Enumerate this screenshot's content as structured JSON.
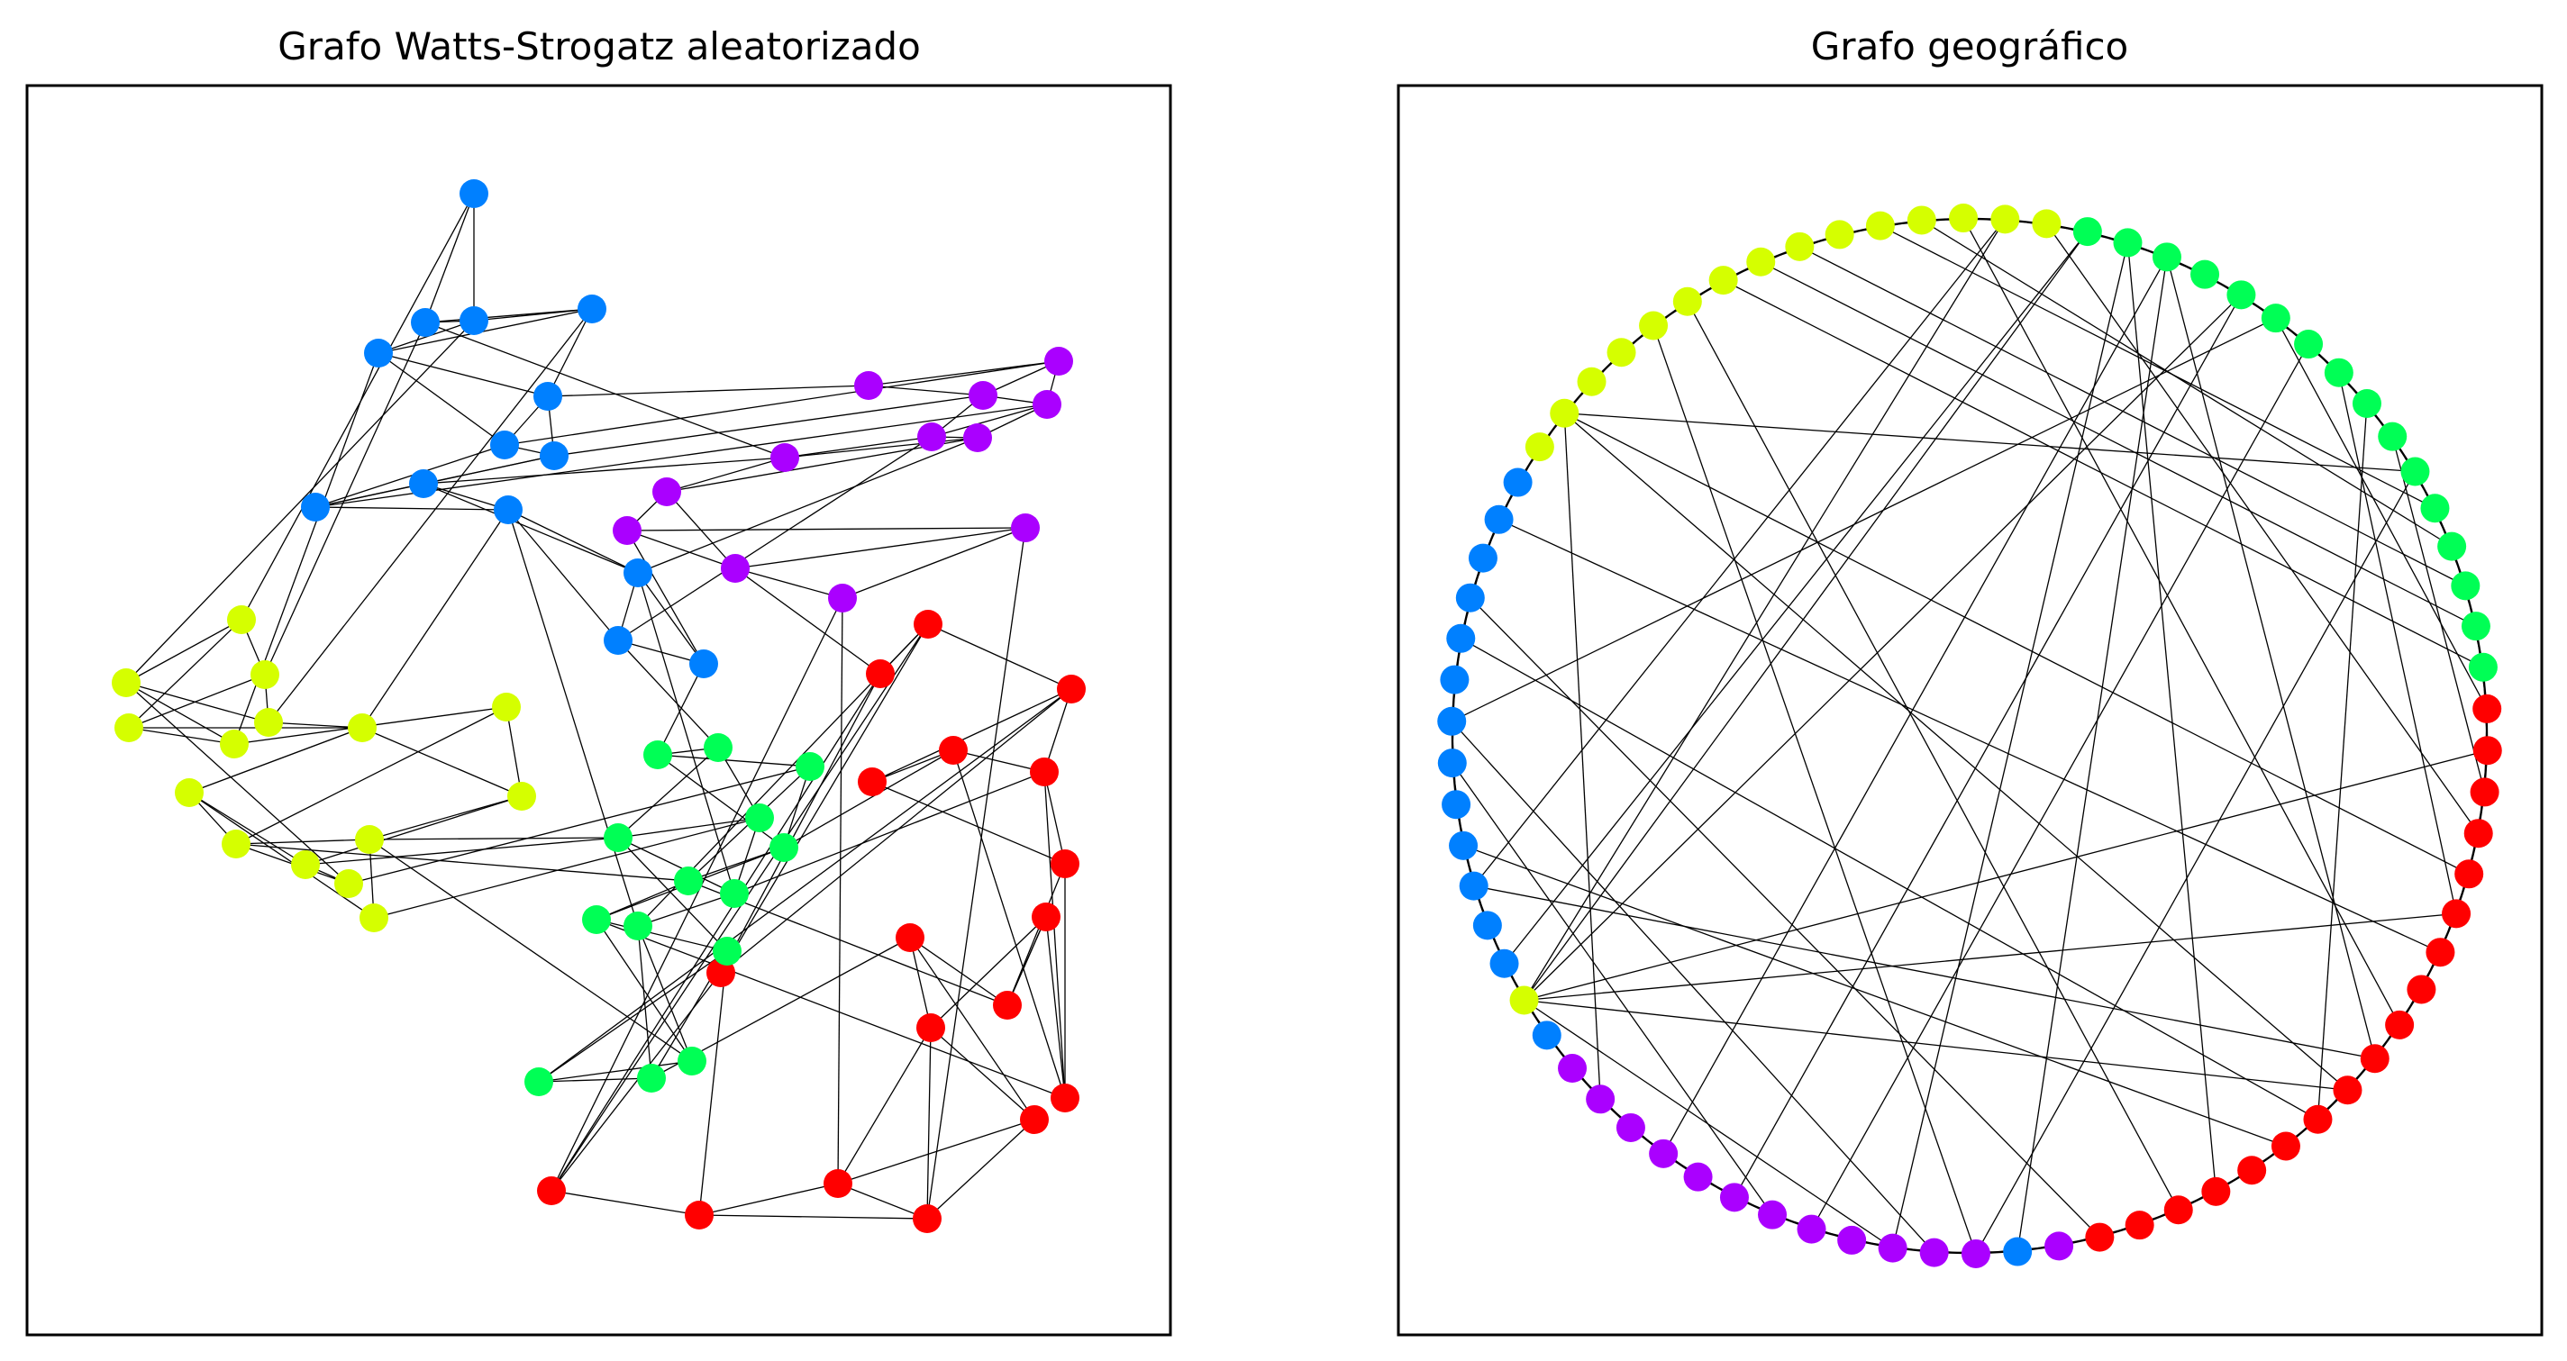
{
  "figure": {
    "panels": [
      {
        "id": "ws",
        "title": "Grafo Watts-Strogatz aleatorizado",
        "layout": "spring",
        "nodes": [
          {
            "id": "r0",
            "g": "red"
          },
          {
            "id": "r1",
            "g": "red"
          },
          {
            "id": "r2",
            "g": "red"
          },
          {
            "id": "r3",
            "g": "red"
          },
          {
            "id": "r4",
            "g": "red"
          },
          {
            "id": "r5",
            "g": "red"
          },
          {
            "id": "r6",
            "g": "red"
          },
          {
            "id": "r7",
            "g": "red"
          },
          {
            "id": "r8",
            "g": "red"
          },
          {
            "id": "r9",
            "g": "red"
          },
          {
            "id": "r10",
            "g": "red"
          },
          {
            "id": "r11",
            "g": "red"
          },
          {
            "id": "r12",
            "g": "red"
          },
          {
            "id": "r13",
            "g": "red"
          },
          {
            "id": "r14",
            "g": "red"
          },
          {
            "id": "r15",
            "g": "red"
          },
          {
            "id": "r16",
            "g": "red"
          },
          {
            "id": "r17",
            "g": "red"
          },
          {
            "id": "g0",
            "g": "green"
          },
          {
            "id": "g1",
            "g": "green"
          },
          {
            "id": "g2",
            "g": "green"
          },
          {
            "id": "g3",
            "g": "green"
          },
          {
            "id": "g4",
            "g": "green"
          },
          {
            "id": "g5",
            "g": "green"
          },
          {
            "id": "g6",
            "g": "green"
          },
          {
            "id": "g7",
            "g": "green"
          },
          {
            "id": "g8",
            "g": "green"
          },
          {
            "id": "g9",
            "g": "green"
          },
          {
            "id": "g10",
            "g": "green"
          },
          {
            "id": "g11",
            "g": "green"
          },
          {
            "id": "g12",
            "g": "green"
          },
          {
            "id": "g13",
            "g": "green"
          },
          {
            "id": "y0",
            "g": "yellow"
          },
          {
            "id": "y1",
            "g": "yellow"
          },
          {
            "id": "y2",
            "g": "yellow"
          },
          {
            "id": "y3",
            "g": "yellow"
          },
          {
            "id": "y4",
            "g": "yellow"
          },
          {
            "id": "y5",
            "g": "yellow"
          },
          {
            "id": "y6",
            "g": "yellow"
          },
          {
            "id": "y7",
            "g": "yellow"
          },
          {
            "id": "y8",
            "g": "yellow"
          },
          {
            "id": "y9",
            "g": "yellow"
          },
          {
            "id": "y10",
            "g": "yellow"
          },
          {
            "id": "y11",
            "g": "yellow"
          },
          {
            "id": "y12",
            "g": "yellow"
          },
          {
            "id": "y13",
            "g": "yellow"
          },
          {
            "id": "y14",
            "g": "yellow"
          },
          {
            "id": "b0",
            "g": "blue"
          },
          {
            "id": "b1",
            "g": "blue"
          },
          {
            "id": "b2",
            "g": "blue"
          },
          {
            "id": "b3",
            "g": "blue"
          },
          {
            "id": "b4",
            "g": "blue"
          },
          {
            "id": "b5",
            "g": "blue"
          },
          {
            "id": "b6",
            "g": "blue"
          },
          {
            "id": "b7",
            "g": "blue"
          },
          {
            "id": "b8",
            "g": "blue"
          },
          {
            "id": "b9",
            "g": "blue"
          },
          {
            "id": "b10",
            "g": "blue"
          },
          {
            "id": "b11",
            "g": "blue"
          },
          {
            "id": "b12",
            "g": "blue"
          },
          {
            "id": "b13",
            "g": "blue"
          },
          {
            "id": "p0",
            "g": "purple"
          },
          {
            "id": "p1",
            "g": "purple"
          },
          {
            "id": "p2",
            "g": "purple"
          },
          {
            "id": "p3",
            "g": "purple"
          },
          {
            "id": "p4",
            "g": "purple"
          },
          {
            "id": "p5",
            "g": "purple"
          },
          {
            "id": "p6",
            "g": "purple"
          },
          {
            "id": "p7",
            "g": "purple"
          },
          {
            "id": "p8",
            "g": "purple"
          },
          {
            "id": "p9",
            "g": "purple"
          },
          {
            "id": "p10",
            "g": "purple"
          },
          {
            "id": "p11",
            "g": "purple"
          }
        ],
        "edges": [
          [
            "r17",
            "r16"
          ],
          [
            "r16",
            "r14"
          ],
          [
            "r14",
            "r15"
          ],
          [
            "r15",
            "r13"
          ],
          [
            "r13",
            "r12"
          ],
          [
            "r12",
            "r11"
          ],
          [
            "r11",
            "r10"
          ],
          [
            "r10",
            "r9"
          ],
          [
            "r9",
            "r8"
          ],
          [
            "r8",
            "r7"
          ],
          [
            "r7",
            "r5"
          ],
          [
            "r5",
            "r6"
          ],
          [
            "r6",
            "r4"
          ],
          [
            "r4",
            "r2"
          ],
          [
            "r2",
            "r3"
          ],
          [
            "r3",
            "r1"
          ],
          [
            "r1",
            "r0"
          ],
          [
            "r0",
            "r17"
          ],
          [
            "r16",
            "r13"
          ],
          [
            "r14",
            "r13"
          ],
          [
            "r12",
            "r9"
          ],
          [
            "r11",
            "r8"
          ],
          [
            "r10",
            "r7"
          ],
          [
            "r6",
            "r5"
          ],
          [
            "r4",
            "r3"
          ],
          [
            "r2",
            "r1"
          ],
          [
            "r15",
            "r12"
          ],
          [
            "r9",
            "r7"
          ],
          [
            "r8",
            "r6"
          ],
          [
            "r5",
            "r3"
          ],
          [
            "r17",
            "r1"
          ],
          [
            "r0",
            "r2"
          ],
          [
            "r16",
            "r15"
          ],
          [
            "g0",
            "g1"
          ],
          [
            "g0",
            "g2"
          ],
          [
            "g1",
            "g3"
          ],
          [
            "g2",
            "g4"
          ],
          [
            "g3",
            "g5"
          ],
          [
            "g4",
            "g6"
          ],
          [
            "g5",
            "g7"
          ],
          [
            "g6",
            "g8"
          ],
          [
            "g7",
            "g9"
          ],
          [
            "g8",
            "g10"
          ],
          [
            "g9",
            "g11"
          ],
          [
            "g10",
            "g12"
          ],
          [
            "g11",
            "g13"
          ],
          [
            "g0",
            "g4"
          ],
          [
            "g1",
            "g5"
          ],
          [
            "g2",
            "g6"
          ],
          [
            "g3",
            "g7"
          ],
          [
            "g8",
            "g11"
          ],
          [
            "g9",
            "g12"
          ],
          [
            "g10",
            "g13"
          ],
          [
            "g12",
            "g13"
          ],
          [
            "g4",
            "g8"
          ],
          [
            "g5",
            "g10"
          ],
          [
            "y0",
            "y1"
          ],
          [
            "y0",
            "y2"
          ],
          [
            "y1",
            "y3"
          ],
          [
            "y2",
            "y4"
          ],
          [
            "y3",
            "y5"
          ],
          [
            "y4",
            "y6"
          ],
          [
            "y5",
            "y7"
          ],
          [
            "y6",
            "y8"
          ],
          [
            "y7",
            "y9"
          ],
          [
            "y8",
            "y10"
          ],
          [
            "y9",
            "y11"
          ],
          [
            "y10",
            "y12"
          ],
          [
            "y11",
            "y13"
          ],
          [
            "y12",
            "y14"
          ],
          [
            "y0",
            "y3"
          ],
          [
            "y1",
            "y4"
          ],
          [
            "y2",
            "y5"
          ],
          [
            "y6",
            "y9"
          ],
          [
            "y7",
            "y10"
          ],
          [
            "y8",
            "y11"
          ],
          [
            "y9",
            "y12"
          ],
          [
            "y10",
            "y13"
          ],
          [
            "y3",
            "y6"
          ],
          [
            "b0",
            "b1"
          ],
          [
            "b1",
            "b2"
          ],
          [
            "b2",
            "b3"
          ],
          [
            "b3",
            "b4"
          ],
          [
            "b4",
            "b5"
          ],
          [
            "b5",
            "b6"
          ],
          [
            "b6",
            "b7"
          ],
          [
            "b7",
            "b8"
          ],
          [
            "b8",
            "b9"
          ],
          [
            "b9",
            "b10"
          ],
          [
            "b10",
            "b11"
          ],
          [
            "b11",
            "b12"
          ],
          [
            "b12",
            "b13"
          ],
          [
            "b0",
            "b2"
          ],
          [
            "b1",
            "b3"
          ],
          [
            "b2",
            "b4"
          ],
          [
            "b3",
            "b5"
          ],
          [
            "b4",
            "b6"
          ],
          [
            "b6",
            "b8"
          ],
          [
            "b7",
            "b9"
          ],
          [
            "b9",
            "b11"
          ],
          [
            "b10",
            "b12"
          ],
          [
            "b11",
            "b13"
          ],
          [
            "b5",
            "b7"
          ],
          [
            "b8",
            "b10"
          ],
          [
            "p0",
            "p1"
          ],
          [
            "p1",
            "p2"
          ],
          [
            "p2",
            "p3"
          ],
          [
            "p3",
            "p4"
          ],
          [
            "p4",
            "p5"
          ],
          [
            "p5",
            "p6"
          ],
          [
            "p6",
            "p7"
          ],
          [
            "p7",
            "p8"
          ],
          [
            "p8",
            "p9"
          ],
          [
            "p9",
            "p10"
          ],
          [
            "p10",
            "p11"
          ],
          [
            "p0",
            "p2"
          ],
          [
            "p1",
            "p3"
          ],
          [
            "p2",
            "p4"
          ],
          [
            "p4",
            "p6"
          ],
          [
            "p5",
            "p7"
          ],
          [
            "p7",
            "p9"
          ],
          [
            "p8",
            "p10"
          ],
          [
            "p9",
            "p11"
          ],
          [
            "p3",
            "p5"
          ],
          [
            "r12",
            "g13"
          ],
          [
            "r7",
            "g8"
          ],
          [
            "r4",
            "g12"
          ],
          [
            "r0",
            "p11"
          ],
          [
            "r1",
            "p10"
          ],
          [
            "r6",
            "g6"
          ],
          [
            "r10",
            "g4"
          ],
          [
            "r14",
            "p9"
          ],
          [
            "g0",
            "b13"
          ],
          [
            "g2",
            "y13"
          ],
          [
            "g1",
            "b12"
          ],
          [
            "g3",
            "y14"
          ],
          [
            "g6",
            "y10"
          ],
          [
            "g7",
            "b11"
          ],
          [
            "g9",
            "b10"
          ],
          [
            "g11",
            "y12"
          ],
          [
            "y0",
            "b0"
          ],
          [
            "y1",
            "b1"
          ],
          [
            "y2",
            "b2"
          ],
          [
            "y4",
            "b3"
          ],
          [
            "y5",
            "b4"
          ],
          [
            "y8",
            "y14"
          ],
          [
            "y11",
            "g5"
          ],
          [
            "y13",
            "y2"
          ],
          [
            "b5",
            "p0"
          ],
          [
            "b6",
            "p1"
          ],
          [
            "b7",
            "p2"
          ],
          [
            "b8",
            "p3"
          ],
          [
            "b9",
            "p6"
          ],
          [
            "b13",
            "p8"
          ],
          [
            "p4",
            "b12"
          ],
          [
            "p5",
            "b11"
          ],
          [
            "r16",
            "p11"
          ],
          [
            "r17",
            "g10"
          ],
          [
            "r9",
            "g7"
          ],
          [
            "r13",
            "g9"
          ],
          [
            "y6",
            "b10"
          ],
          [
            "y12",
            "g5"
          ],
          [
            "p6",
            "b1"
          ],
          [
            "r3",
            "r0"
          ]
        ]
      },
      {
        "id": "geo",
        "title": "Grafo geográfico",
        "layout": "circular",
        "ring": [
          "r",
          "r",
          "r",
          "r",
          "r",
          "r",
          "r",
          "r",
          "r",
          "r",
          "r",
          "r",
          "r",
          "r",
          "r",
          "r",
          "r",
          "r",
          "p",
          "b",
          "p",
          "p",
          "p",
          "p",
          "p",
          "p",
          "p",
          "p",
          "p",
          "p",
          "p",
          "p",
          "b",
          "y",
          "b",
          "b",
          "b",
          "b",
          "b",
          "b",
          "b",
          "b",
          "b",
          "b",
          "b",
          "b",
          "b",
          "y",
          "y",
          "y",
          "y",
          "y",
          "y",
          "y",
          "y",
          "y",
          "y",
          "y",
          "y",
          "y",
          "y",
          "y",
          "g",
          "g",
          "g",
          "g",
          "g",
          "g",
          "g",
          "g",
          "g",
          "g",
          "g",
          "g",
          "g",
          "g",
          "g",
          "g"
        ],
        "chords": [
          [
            33,
            1
          ],
          [
            33,
            66
          ],
          [
            33,
            5
          ],
          [
            33,
            10
          ],
          [
            33,
            22
          ],
          [
            33,
            62
          ],
          [
            33,
            60
          ],
          [
            48,
            4
          ],
          [
            48,
            10
          ],
          [
            48,
            72
          ],
          [
            48,
            30
          ],
          [
            63,
            14
          ],
          [
            63,
            22
          ],
          [
            64,
            9
          ],
          [
            64,
            19
          ],
          [
            64,
            28
          ],
          [
            62,
            34
          ],
          [
            60,
            36
          ],
          [
            61,
            3
          ],
          [
            67,
            0
          ],
          [
            67,
            40
          ],
          [
            68,
            24
          ],
          [
            69,
            5
          ],
          [
            70,
            11
          ],
          [
            71,
            2
          ],
          [
            72,
            20
          ],
          [
            50,
            78
          ],
          [
            53,
            77
          ],
          [
            54,
            76
          ],
          [
            55,
            75
          ],
          [
            52,
            15
          ],
          [
            51,
            20
          ],
          [
            45,
            6
          ],
          [
            43,
            17
          ],
          [
            40,
            21
          ],
          [
            37,
            12
          ],
          [
            36,
            9
          ],
          [
            39,
            25
          ],
          [
            42,
            11
          ],
          [
            47,
            79
          ],
          [
            57,
            73
          ],
          [
            58,
            74
          ],
          [
            59,
            8
          ],
          [
            26,
            66
          ]
        ]
      }
    ],
    "colors": {
      "red": "#ff0000",
      "green": "#00ff55",
      "yellow": "#d5ff00",
      "blue": "#0080ff",
      "purple": "#aa00ff",
      "r": "#ff0000",
      "g": "#00ff55",
      "y": "#d5ff00",
      "b": "#0080ff",
      "p": "#aa00ff"
    }
  }
}
